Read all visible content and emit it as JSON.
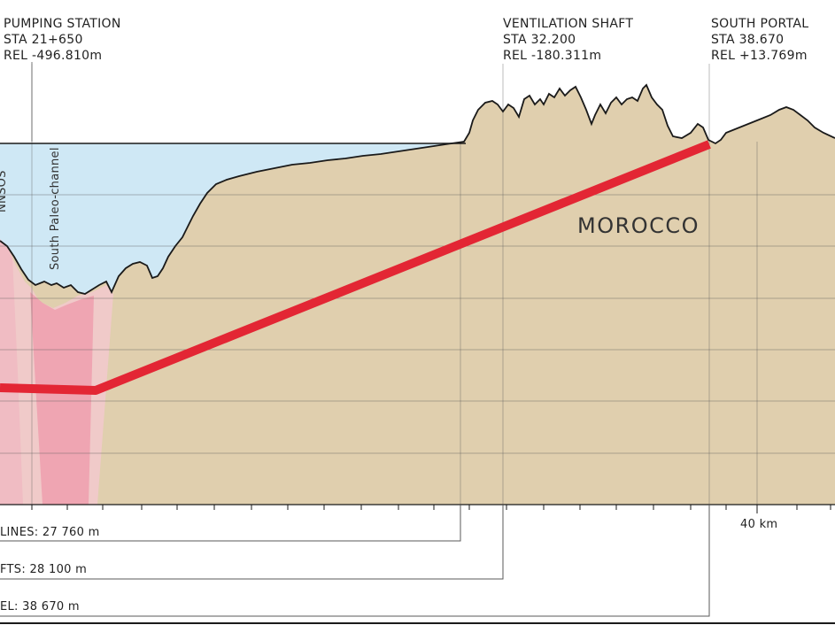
{
  "annotations": {
    "pumping_station": {
      "title": "PUMPING STATION",
      "sta": "STA 21+650",
      "rel": "REL -496.810m"
    },
    "ventilation_shaft": {
      "title": "VENTILATION SHAFT",
      "sta": "STA 32.200",
      "rel": "REL -180.311m"
    },
    "south_portal": {
      "title": "SOUTH PORTAL",
      "sta": "STA 38.670",
      "rel": "REL +13.769m"
    }
  },
  "region_label": "MOROCCO",
  "channel_labels": {
    "south_paleo_channel": "South Paleo-channel",
    "left_partial": "NNSOS"
  },
  "distances": {
    "lines": "LINES: 27 760 m",
    "shafts": "FTS: 28 100 m",
    "tunnel": "EL: 38 670 m"
  },
  "axis": {
    "tick_label_40": "40 km"
  },
  "colors": {
    "sea": "#cfe8f5",
    "land": "#e0cfae",
    "tunnel": "#e32634",
    "fault_zone": "#f4c8cf",
    "fault_core": "#ee9fae",
    "grid": "#5a5a5a",
    "outline": "#1a1a1a"
  }
}
